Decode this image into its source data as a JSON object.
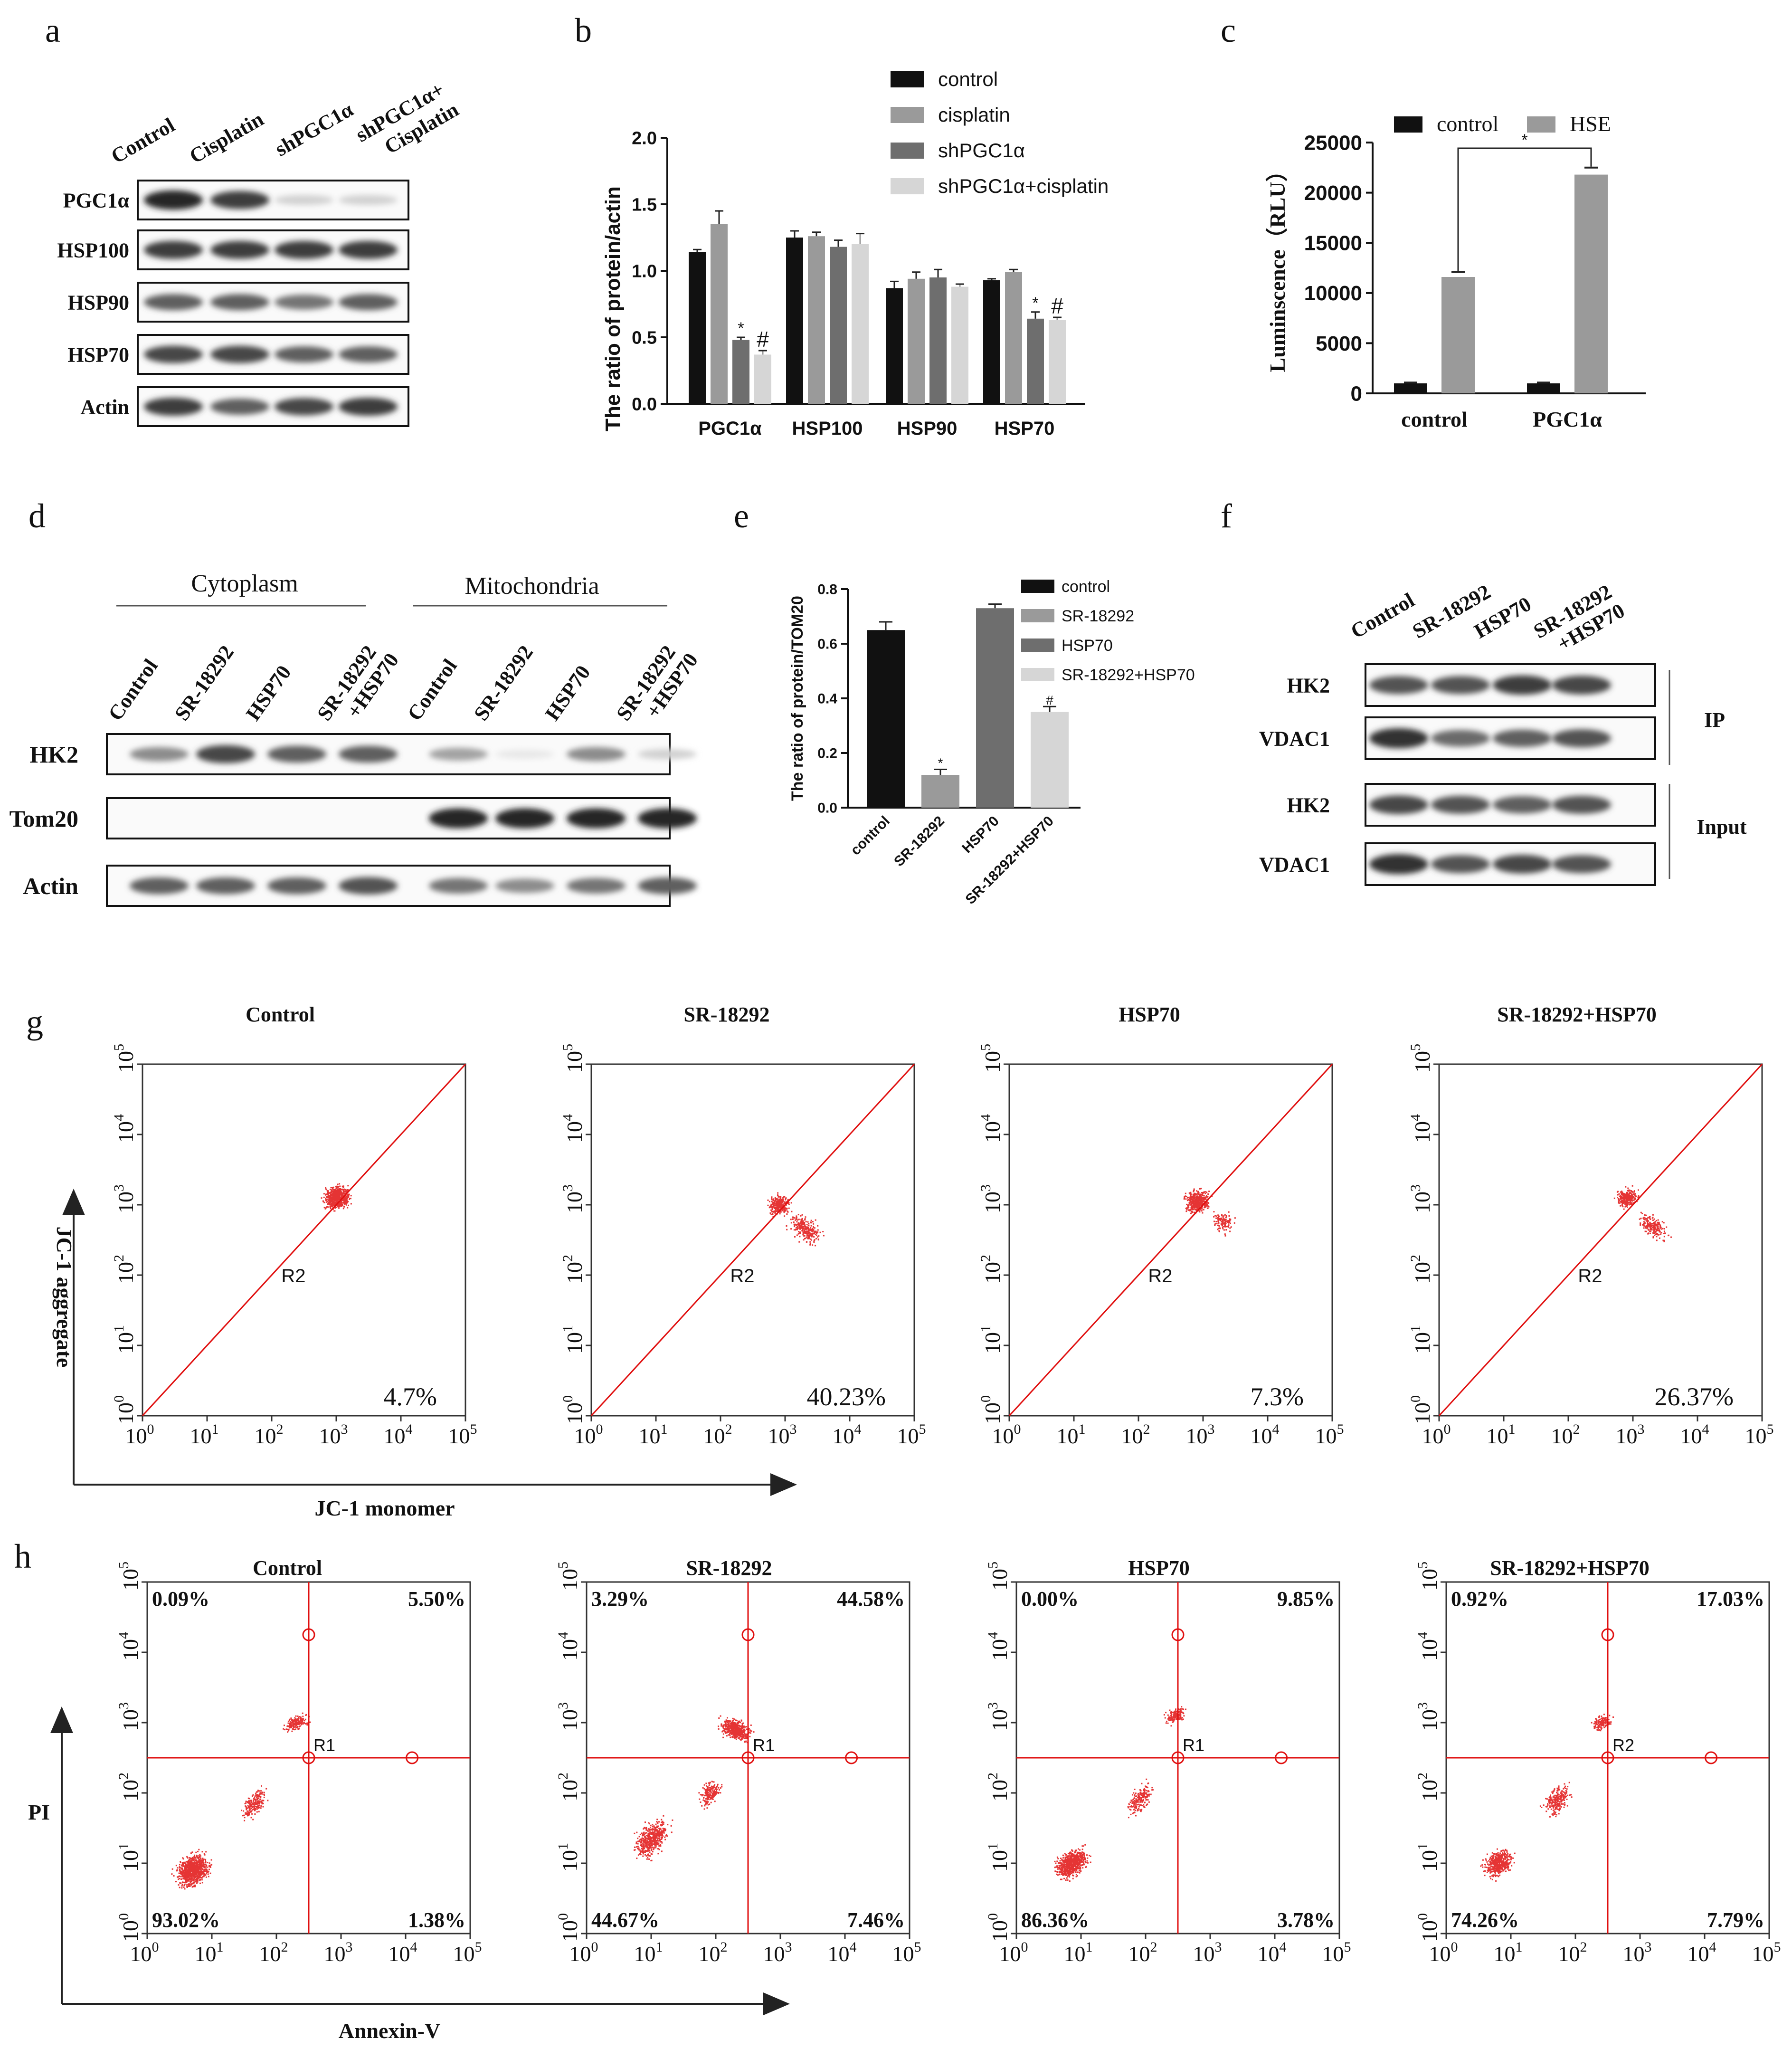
{
  "panels": {
    "a": "a",
    "b": "b",
    "c": "c",
    "d": "d",
    "e": "e",
    "f": "f",
    "g": "g",
    "h": "h"
  },
  "colors": {
    "black": "#111111",
    "mid_gray": "#9a9a9a",
    "dark_gray": "#6e6e6e",
    "light_gray": "#d6d6d6",
    "flow_red": "#e01010"
  },
  "panel_a": {
    "lanes": [
      "Control",
      "Cisplatin",
      "shPGC1α",
      "shPGC1α+ Cisplatin"
    ],
    "rows": [
      "PGC1α",
      "HSP100",
      "HSP90",
      "HSP70",
      "Actin"
    ],
    "band_intensity": [
      [
        0.95,
        0.85,
        0.2,
        0.2
      ],
      [
        0.85,
        0.85,
        0.85,
        0.85
      ],
      [
        0.7,
        0.7,
        0.6,
        0.7
      ],
      [
        0.8,
        0.8,
        0.7,
        0.7
      ],
      [
        0.85,
        0.7,
        0.8,
        0.85
      ]
    ]
  },
  "chart_data": [
    {
      "id": "b",
      "type": "bar",
      "categories": [
        "PGC1α",
        "HSP100",
        "HSP90",
        "HSP70"
      ],
      "series": [
        {
          "name": "control",
          "values": [
            1.14,
            1.25,
            0.87,
            0.93
          ],
          "errors": [
            0.02,
            0.05,
            0.05,
            0.01
          ]
        },
        {
          "name": "cisplatin",
          "values": [
            1.35,
            1.26,
            0.94,
            0.99
          ],
          "errors": [
            0.1,
            0.03,
            0.05,
            0.02
          ]
        },
        {
          "name": "shPGC1α",
          "values": [
            0.48,
            1.18,
            0.95,
            0.64
          ],
          "errors": [
            0.02,
            0.05,
            0.06,
            0.05
          ]
        },
        {
          "name": "shPGC1α+cisplatin",
          "values": [
            0.37,
            1.2,
            0.88,
            0.63
          ],
          "errors": [
            0.03,
            0.08,
            0.02,
            0.02
          ]
        }
      ],
      "ylabel": "The ratio of protein/actin",
      "ylim": [
        0,
        2.0
      ],
      "yticks": [
        "0.0",
        "0.5",
        "1.0",
        "1.5",
        "2.0"
      ],
      "annotations": [
        "*",
        "#",
        "*",
        "#"
      ]
    },
    {
      "id": "c",
      "type": "bar",
      "categories": [
        "control",
        "PGC1α"
      ],
      "series": [
        {
          "name": "control",
          "values": [
            1000,
            1000
          ],
          "errors": [
            80,
            80
          ]
        },
        {
          "name": "HSE",
          "values": [
            11600,
            21800
          ],
          "errors": [
            500,
            700
          ]
        }
      ],
      "ylabel": "Luminscence（RLU）",
      "ylim": [
        0,
        25000
      ],
      "yticks": [
        "0",
        "5000",
        "10000",
        "15000",
        "20000",
        "25000"
      ],
      "annotations": [
        "*"
      ]
    },
    {
      "id": "e",
      "type": "bar",
      "categories": [
        "control",
        "SR-18292",
        "HSP70",
        "SR-18292+HSP70"
      ],
      "series": [
        {
          "name": "ratio",
          "values": [
            0.65,
            0.12,
            0.73,
            0.35
          ],
          "errors": [
            0.03,
            0.02,
            0.015,
            0.02
          ]
        }
      ],
      "legend": [
        "control",
        "SR-18292",
        "HSP70",
        "SR-18292+HSP70"
      ],
      "ylabel": "The ratio of protein/TOM20",
      "ylim": [
        0,
        0.8
      ],
      "yticks": [
        "0.0",
        "0.2",
        "0.4",
        "0.6",
        "0.8"
      ],
      "annotations": [
        "*",
        "#"
      ]
    },
    {
      "id": "g",
      "type": "scatter",
      "title_group": [
        "Control",
        "SR-18292",
        "HSP70",
        "SR-18292+HSP70"
      ],
      "percent": [
        "4.7%",
        "40.23%",
        "7.3%",
        "26.37%"
      ],
      "gate": "R2",
      "xlabel": "JC-1 monomer",
      "ylabel": "JC-1 aggregate",
      "ticks": [
        "0",
        "1",
        "2",
        "3",
        "4",
        "5"
      ]
    },
    {
      "id": "h",
      "type": "scatter",
      "title_group": [
        "Control",
        "SR-18292",
        "HSP70",
        "SR-18292+HSP70"
      ],
      "quadrants": [
        {
          "ul": "0.09%",
          "ur": "5.50%",
          "ll": "93.02%",
          "lr": "1.38%"
        },
        {
          "ul": "3.29%",
          "ur": "44.58%",
          "ll": "44.67%",
          "lr": "7.46%"
        },
        {
          "ul": "0.00%",
          "ur": "9.85%",
          "ll": "86.36%",
          "lr": "3.78%"
        },
        {
          "ul": "0.92%",
          "ur": "17.03%",
          "ll": "74.26%",
          "lr": "7.79%"
        }
      ],
      "gate": [
        "R1",
        "R1",
        "R1",
        "R2"
      ],
      "xlabel": "Annexin-V",
      "ylabel": "PI",
      "ticks": [
        "0",
        "1",
        "2",
        "3",
        "4",
        "5"
      ]
    }
  ],
  "panel_d": {
    "groups": [
      "Cytoplasm",
      "Mitochondria"
    ],
    "lanes": [
      "Control",
      "SR-18292",
      "HSP70",
      "SR-18292 +HSP70",
      "Control",
      "SR-18292",
      "HSP70",
      "SR-18292 +HSP70"
    ],
    "rows": [
      "HK2",
      "Tom20",
      "Actin"
    ],
    "band_intensity": [
      [
        0.5,
        0.8,
        0.7,
        0.7,
        0.4,
        0.1,
        0.5,
        0.2
      ],
      [
        0,
        0,
        0,
        0,
        0.95,
        0.95,
        0.95,
        0.95
      ],
      [
        0.7,
        0.7,
        0.7,
        0.75,
        0.6,
        0.5,
        0.6,
        0.7
      ]
    ]
  },
  "panel_f": {
    "lanes": [
      "Control",
      "SR-18292",
      "HSP70",
      "SR-18292 +HSP70"
    ],
    "rows": [
      "HK2",
      "VDAC1",
      "HK2",
      "VDAC1"
    ],
    "brackets": [
      "IP",
      "Input"
    ],
    "band_intensity": [
      [
        0.75,
        0.75,
        0.85,
        0.8
      ],
      [
        0.9,
        0.65,
        0.7,
        0.75
      ],
      [
        0.8,
        0.75,
        0.7,
        0.75
      ],
      [
        0.9,
        0.75,
        0.8,
        0.75
      ]
    ]
  }
}
